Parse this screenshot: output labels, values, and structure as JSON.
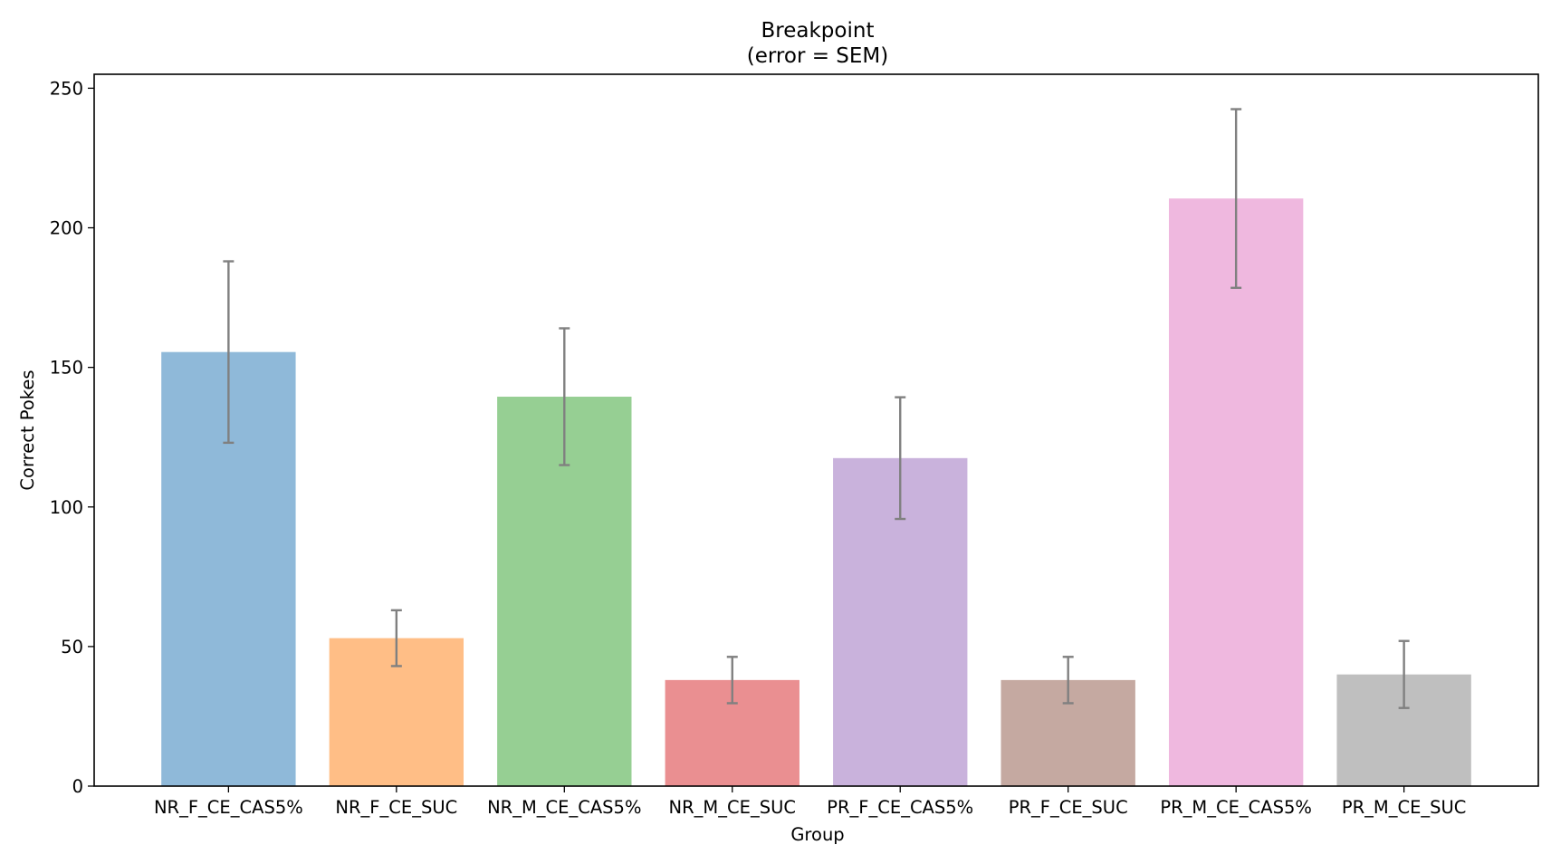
{
  "chart_data": {
    "type": "bar",
    "title": "Breakpoint",
    "subtitle": "(error = SEM)",
    "xlabel": "Group",
    "ylabel": "Correct Pokes",
    "ylim": [
      0,
      255
    ],
    "yticks": [
      0,
      50,
      100,
      150,
      200,
      250
    ],
    "grid": false,
    "legend": "none",
    "categories": [
      "NR_F_CE_CAS5%",
      "NR_F_CE_SUC",
      "NR_M_CE_CAS5%",
      "NR_M_CE_SUC",
      "PR_F_CE_CAS5%",
      "PR_F_CE_SUC",
      "PR_M_CE_CAS5%",
      "PR_M_CE_SUC"
    ],
    "values": [
      155.5,
      53.0,
      139.5,
      38.0,
      117.5,
      38.0,
      210.5,
      40.0
    ],
    "error": [
      32.5,
      10.0,
      24.5,
      8.3,
      21.8,
      8.3,
      32.0,
      12.0
    ],
    "colors": [
      "#8fb9d9",
      "#ffbe86",
      "#96cf93",
      "#ea8f91",
      "#c9b2dc",
      "#c5a9a1",
      "#efb8df",
      "#bfbfbf"
    ],
    "error_color": "#808080"
  }
}
